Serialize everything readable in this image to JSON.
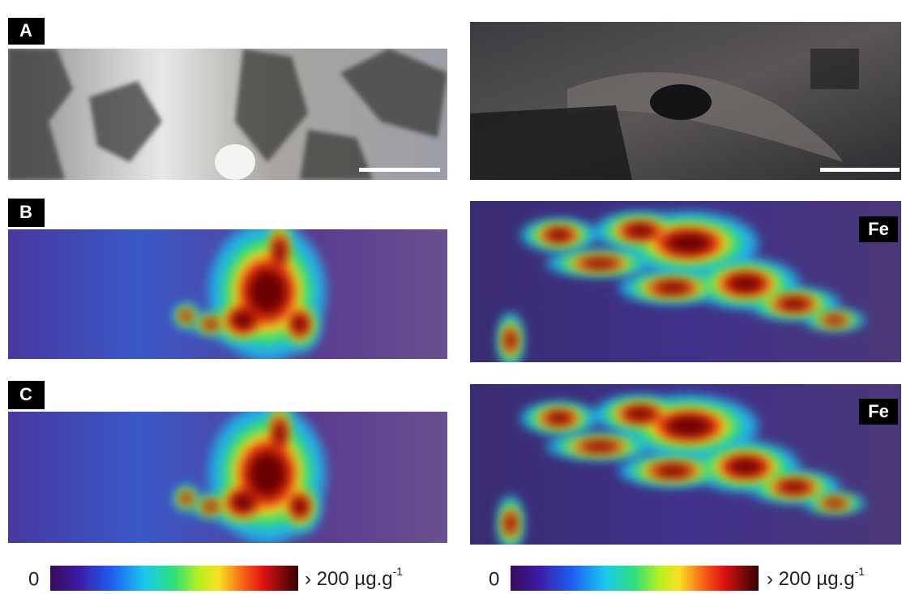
{
  "panels": [
    {
      "label": "A"
    },
    {
      "label": "B"
    },
    {
      "label": "C"
    }
  ],
  "element_labels": [
    "Fe",
    "Fe"
  ],
  "colorbars": [
    {
      "min_label": "0",
      "max_label": "› 200 µg.g",
      "max_label_superscript": "-1"
    },
    {
      "min_label": "0",
      "max_label": "› 200 µg.g",
      "max_label_superscript": "-1"
    }
  ]
}
